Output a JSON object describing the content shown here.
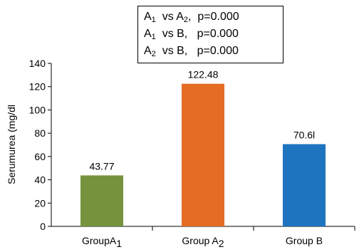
{
  "chart_data": {
    "type": "bar",
    "ylabel": "Serumurea (mg/dl",
    "ylim": [
      0,
      140
    ],
    "yticks": [
      "0",
      "20",
      "40",
      "60",
      "80",
      "100",
      "120",
      "140"
    ],
    "categories": [
      {
        "text": "GroupA",
        "sub": "1"
      },
      {
        "text": "Group A",
        "sub": "2"
      },
      {
        "text": "Group B",
        "sub": ""
      }
    ],
    "values": [
      43.77,
      122.48,
      70.61
    ],
    "value_labels": [
      "43.77",
      "122.48",
      "70.6l"
    ],
    "colors": [
      "#76923c",
      "#e46c24",
      "#1f74bf"
    ],
    "grid": false,
    "legend": "none"
  },
  "stats_box": {
    "rows": [
      {
        "a": "A",
        "a_sub": "1",
        "mid": "  vs A",
        "b_sub": "2",
        "tail": ",  p=0.000"
      },
      {
        "a": "A",
        "a_sub": "1",
        "mid": "  vs B,",
        "b_sub": "",
        "tail": "   p=0.000"
      },
      {
        "a": "A",
        "a_sub": "2",
        "mid": "  vs B,",
        "b_sub": "",
        "tail": "   p=0.000"
      }
    ]
  }
}
